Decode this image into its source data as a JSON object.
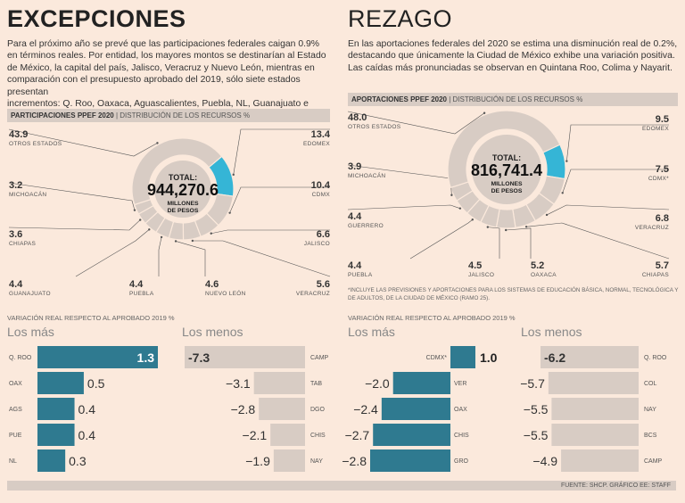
{
  "left": {
    "title": "EXCEPCIONES",
    "intro": [
      "Para el próximo año se prevé que las participaciones federales caigan 0.9%",
      "en términos reales. Por entidad, los mayores montos se destinarían al Estado",
      "de México, la capital del país, Jalisco, Veracruz y Nuevo León, mientras en",
      "comparación con el presupuesto aprobado del 2019, sólo siete estados presentan",
      "incrementos: Q. Roo, Oaxaca, Aguascalientes, Puebla, NL, Guanajuato e Hidalgo."
    ],
    "band_bold": "PARTICIPACIONES PPEF 2020",
    "band_rest": " | DISTRIBUCIÓN DE LOS RECURSOS %",
    "total_label": "TOTAL:",
    "total_value": "944,270.6",
    "total_unit1": "MILLONES",
    "total_unit2": "DE PESOS",
    "var_title": "VARIACIÓN REAL RESPECTO AL APROBADO 2019 %",
    "mas_title": "Los más",
    "menos_title": "Los menos"
  },
  "right": {
    "title": "REZAGO",
    "intro": [
      "En las aportaciones federales del 2020 se estima una disminución real de 0.2%,",
      "destacando que únicamente la Ciudad de México exhibe una variación positiva.",
      "Las caídas más pronunciadas se observan en Quintana Roo, Colima y Nayarit."
    ],
    "band_bold": "APORTACIONES PPEF 2020",
    "band_rest": " | DISTRIBUCIÓN DE LOS RECURSOS %",
    "total_label": "TOTAL:",
    "total_value": "816,741.4",
    "total_unit1": "MILLONES",
    "total_unit2": "DE PESOS",
    "note1": "*INCLUYE LAS PREVISIONES Y APORTACIONES PARA LOS SISTEMAS DE EDUCACIÓN BÁSICA, NORMAL, TECNOLÓGICA Y",
    "note2": "DE ADULTOS, DE LA CIUDAD DE MÉXICO (RAMO 25).",
    "var_title": "VARIACIÓN REAL RESPECTO AL APROBADO 2019 %",
    "mas_title": "Los más",
    "menos_title": "Los menos"
  },
  "footer": "FUENTE: SHCP. GRÁFICO EE: STAFF",
  "colors": {
    "accent": "#2f7a90",
    "highlight": "#35b5d6",
    "slice": "#d8ccc4",
    "bar_neg": "#d8ccc4",
    "bg": "#fbe9dc"
  },
  "chart_data": [
    {
      "type": "pie",
      "title": "PARTICIPACIONES PPEF 2020",
      "categories": [
        "EDOMEX",
        "CDMX",
        "JALISCO",
        "VERACRUZ",
        "NUEVO LEÓN",
        "PUEBLA",
        "GUANAJUATO",
        "CHIAPAS",
        "MICHOACÁN",
        "OTROS ESTADOS"
      ],
      "values": [
        13.4,
        10.4,
        6.6,
        5.6,
        4.6,
        4.4,
        4.4,
        3.6,
        3.2,
        43.9
      ],
      "labels": [
        "13.4",
        "10.4",
        "6.6",
        "5.6",
        "4.6",
        "4.4",
        "4.4",
        "3.6",
        "3.2",
        "43.9"
      ],
      "highlight": "EDOMEX"
    },
    {
      "type": "pie",
      "title": "APORTACIONES PPEF 2020",
      "categories": [
        "EDOMEX",
        "CDMX*",
        "VERACRUZ",
        "CHIAPAS",
        "OAXACA",
        "JALISCO",
        "PUEBLA",
        "GUERRERO",
        "MICHOACÁN",
        "OTROS ESTADOS"
      ],
      "values": [
        9.5,
        7.5,
        6.8,
        5.7,
        5.2,
        4.5,
        4.4,
        4.4,
        3.9,
        48.0
      ],
      "labels": [
        "9.5",
        "7.5",
        "6.8",
        "5.7",
        "5.2",
        "4.5",
        "4.4",
        "4.4",
        "3.9",
        "48.0"
      ],
      "highlight": "EDOMEX"
    },
    {
      "type": "bar",
      "title": "Los más",
      "categories": [
        "Q. ROO",
        "OAX",
        "AGS",
        "PUE",
        "NL"
      ],
      "values": [
        1.3,
        0.5,
        0.4,
        0.4,
        0.3
      ],
      "labels": [
        "1.3",
        "0.5",
        "0.4",
        "0.4",
        "0.3"
      ]
    },
    {
      "type": "bar",
      "title": "Los menos",
      "categories": [
        "CAMP",
        "TAB",
        "DGO",
        "CHIS",
        "NAY"
      ],
      "values": [
        -7.3,
        -3.1,
        -2.8,
        -2.1,
        -1.9
      ],
      "labels": [
        "-7.3",
        "−3.1",
        "−2.8",
        "−2.1",
        "−1.9"
      ]
    },
    {
      "type": "bar",
      "title": "Los más",
      "categories": [
        "CDMX*",
        "VER",
        "OAX",
        "CHIS",
        "GRO"
      ],
      "values": [
        1.0,
        -2.0,
        -2.4,
        -2.7,
        -2.8
      ],
      "labels": [
        "1.0",
        "−2.0",
        "−2.4",
        "−2.7",
        "−2.8"
      ]
    },
    {
      "type": "bar",
      "title": "Los menos",
      "categories": [
        "Q. ROO",
        "COL",
        "NAY",
        "BCS",
        "CAMP"
      ],
      "values": [
        -6.2,
        -5.7,
        -5.5,
        -5.5,
        -4.9
      ],
      "labels": [
        "-6.2",
        "−5.7",
        "−5.5",
        "−5.5",
        "−4.9"
      ]
    }
  ]
}
